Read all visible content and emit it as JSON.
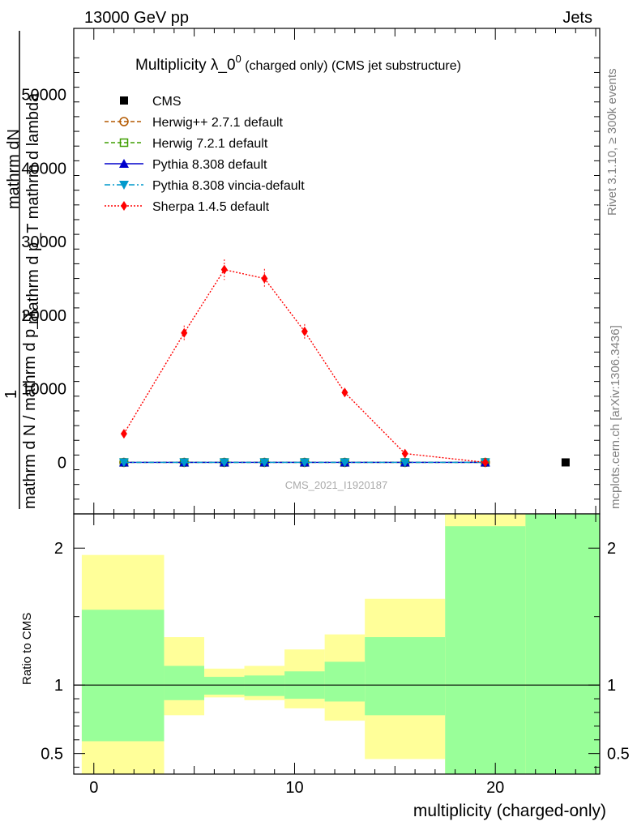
{
  "header": {
    "energy_label": "13000 GeV pp",
    "process_label": "Jets",
    "right_side_label": "Rivet 3.1.10, ≥ 300k events",
    "right_side_ref": "mcplots.cern.ch [arXiv:1306.3436]",
    "watermark": "CMS_2021_I1920187"
  },
  "chart_data": [
    {
      "type": "line",
      "title_main": "Multiplicity λ_0",
      "title_sup": "0",
      "title_rest": " (charged only) (CMS jet substructure)",
      "ylabel_top": "mathrm dN",
      "ylabel_mid": "mathrm d p_T mathrm d lambda",
      "ylabel_num": "1",
      "ylabel_den": "mathrm d N / mathrm d p_T",
      "ylim": [
        -7000,
        59000
      ],
      "xlim": [
        -1,
        25.2
      ],
      "yticks": [
        0,
        10000,
        20000,
        30000,
        40000,
        50000
      ],
      "yticklabels": [
        "0",
        "10000",
        "20000",
        "30000",
        "40000",
        "50000"
      ],
      "legend_position": "top-left",
      "series": [
        {
          "name": "CMS",
          "color": "#000000",
          "marker": "square",
          "style": "none",
          "points": [
            [
              23.5,
              0
            ]
          ]
        },
        {
          "name": "Herwig++ 2.7.1 default",
          "color": "#b35900",
          "marker": "circle-open",
          "style": "dashed",
          "points": [
            [
              1.5,
              0
            ],
            [
              4.5,
              0
            ],
            [
              6.5,
              0
            ],
            [
              8.5,
              0
            ],
            [
              10.5,
              0
            ],
            [
              12.5,
              0
            ],
            [
              15.5,
              0
            ],
            [
              19.5,
              0
            ]
          ]
        },
        {
          "name": "Herwig 7.2.1 default",
          "color": "#3f9e00",
          "marker": "square-open",
          "style": "dashed",
          "points": [
            [
              1.5,
              0
            ],
            [
              4.5,
              0
            ],
            [
              6.5,
              0
            ],
            [
              8.5,
              0
            ],
            [
              10.5,
              0
            ],
            [
              12.5,
              0
            ],
            [
              15.5,
              0
            ],
            [
              19.5,
              0
            ]
          ]
        },
        {
          "name": "Pythia 8.308 default",
          "color": "#0000cc",
          "marker": "triangle-up",
          "style": "solid",
          "points": [
            [
              1.5,
              0
            ],
            [
              4.5,
              0
            ],
            [
              6.5,
              0
            ],
            [
              8.5,
              0
            ],
            [
              10.5,
              0
            ],
            [
              12.5,
              0
            ],
            [
              15.5,
              0
            ],
            [
              19.5,
              0
            ]
          ]
        },
        {
          "name": "Pythia 8.308 vincia-default",
          "color": "#0099cc",
          "marker": "triangle-down",
          "style": "dashdot",
          "points": [
            [
              1.5,
              0
            ],
            [
              4.5,
              0
            ],
            [
              6.5,
              0
            ],
            [
              8.5,
              0
            ],
            [
              10.5,
              0
            ],
            [
              12.5,
              0
            ],
            [
              15.5,
              0
            ],
            [
              19.5,
              0
            ]
          ]
        },
        {
          "name": "Sherpa 1.4.5 default",
          "color": "#ff0000",
          "marker": "diamond",
          "style": "dotted",
          "points": [
            [
              1.5,
              3900
            ],
            [
              4.5,
              17600
            ],
            [
              6.5,
              26200
            ],
            [
              8.5,
              25000
            ],
            [
              10.5,
              17800
            ],
            [
              12.5,
              9500
            ],
            [
              15.5,
              1200
            ],
            [
              19.5,
              0
            ]
          ],
          "errors": [
            0,
            1000,
            1400,
            1300,
            1000,
            600,
            0,
            0
          ]
        }
      ]
    },
    {
      "type": "area",
      "ylabel": "Ratio to CMS",
      "xlabel": "multiplicity (charged-only)",
      "xlim": [
        -1,
        25.2
      ],
      "ylim": [
        0.35,
        2.25
      ],
      "xticks": [
        0,
        10,
        20
      ],
      "xticklabels": [
        "0",
        "10",
        "20"
      ],
      "yticks": [
        0.5,
        1,
        2
      ],
      "yticklabels": [
        "0.5",
        "1",
        "2"
      ],
      "reference_line": 1,
      "bands": [
        {
          "x0": -0.6,
          "x1": 3.5,
          "green": [
            0.59,
            1.55
          ],
          "yellow": [
            0.35,
            1.95
          ]
        },
        {
          "x0": 3.5,
          "x1": 5.5,
          "green": [
            0.89,
            1.14
          ],
          "yellow": [
            0.78,
            1.35
          ]
        },
        {
          "x0": 5.5,
          "x1": 7.5,
          "green": [
            0.93,
            1.06
          ],
          "yellow": [
            0.91,
            1.12
          ]
        },
        {
          "x0": 7.5,
          "x1": 9.5,
          "green": [
            0.92,
            1.07
          ],
          "yellow": [
            0.89,
            1.14
          ]
        },
        {
          "x0": 9.5,
          "x1": 11.5,
          "green": [
            0.9,
            1.1
          ],
          "yellow": [
            0.83,
            1.26
          ]
        },
        {
          "x0": 11.5,
          "x1": 13.5,
          "green": [
            0.88,
            1.17
          ],
          "yellow": [
            0.74,
            1.37
          ]
        },
        {
          "x0": 13.5,
          "x1": 17.5,
          "green": [
            0.78,
            1.35
          ],
          "yellow": [
            0.46,
            1.63
          ]
        },
        {
          "x0": 17.5,
          "x1": 21.5,
          "green": [
            0.35,
            2.25
          ],
          "yellow": [
            0.35,
            2.25
          ]
        },
        {
          "x0": 21.5,
          "x1": 25.2,
          "green": [
            0.35,
            2.25
          ],
          "yellow": [
            0.35,
            2.25
          ]
        }
      ],
      "green_color": "#99ff99",
      "yellow_color": "#ffff99",
      "yellow_only_top": [
        {
          "x0": -0.6,
          "x1": 3.5,
          "lower_yellow": [
            0.35,
            0.56
          ]
        },
        {
          "x0": 17.5,
          "x1": 21.5,
          "upper_yellow": [
            2.16,
            2.25
          ]
        }
      ]
    }
  ]
}
